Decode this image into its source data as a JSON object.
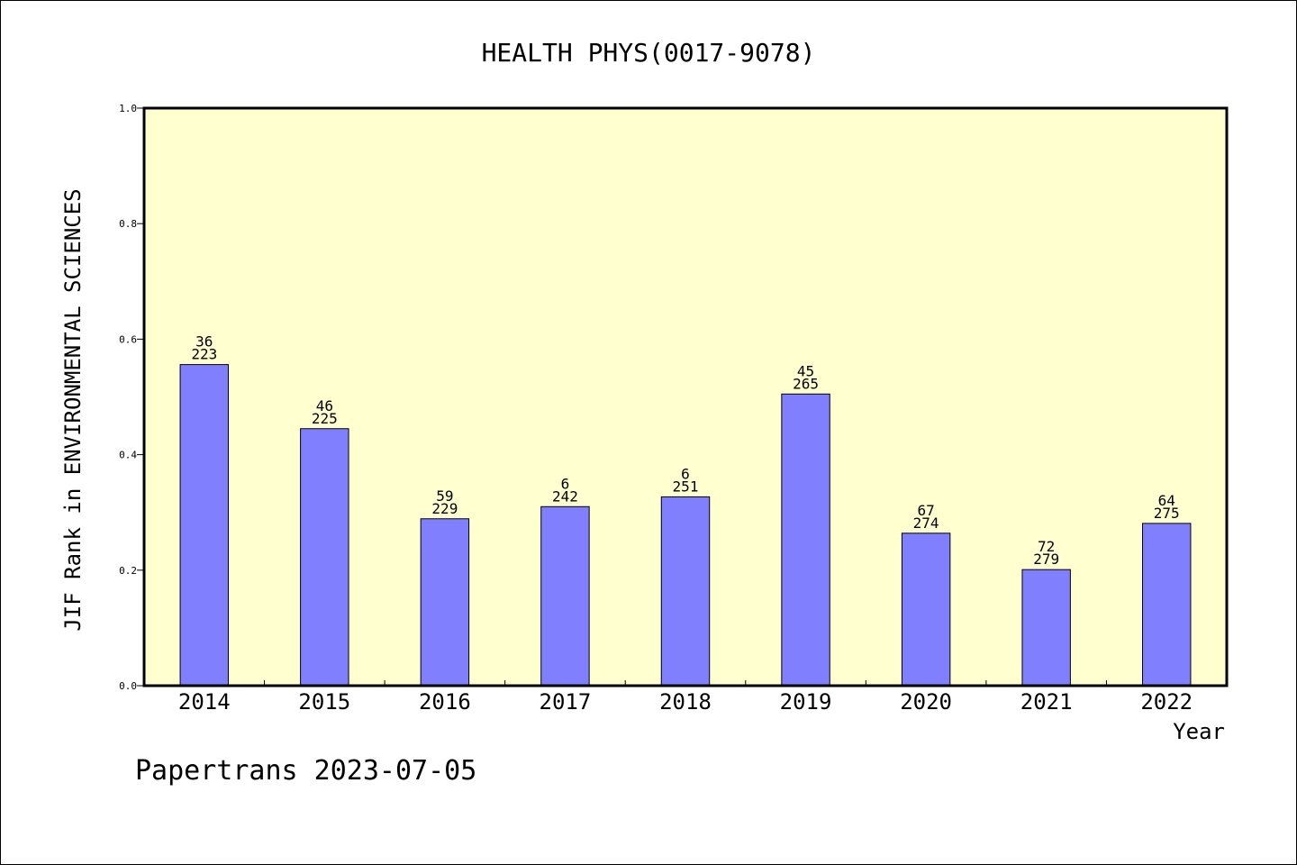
{
  "chart_data": {
    "type": "bar",
    "title": "HEALTH PHYS(0017-9078)",
    "xlabel": "Year",
    "ylabel": "JIF Rank in ENVIRONMENTAL SCIENCES",
    "ylim": [
      0,
      1.0
    ],
    "yticks": [
      "0.0",
      "0.2",
      "0.4",
      "0.6",
      "0.8",
      "1.0"
    ],
    "grid": false,
    "categories": [
      "2014",
      "2015",
      "2016",
      "2017",
      "2018",
      "2019",
      "2020",
      "2021",
      "2022"
    ],
    "values": [
      0.556,
      0.445,
      0.289,
      0.31,
      0.327,
      0.505,
      0.264,
      0.201,
      0.281
    ],
    "rank_labels": [
      "36",
      "46",
      "59",
      "6",
      "6",
      "45",
      "67",
      "72",
      "64"
    ],
    "total_labels": [
      "223",
      "225",
      "229",
      "242",
      "251",
      "265",
      "274",
      "279",
      "275"
    ],
    "colors": {
      "plot_background": "#ffffd0",
      "bar_fill": "#8080ff",
      "bar_stroke": "#000000"
    }
  },
  "footer": "Papertrans 2023-07-05"
}
